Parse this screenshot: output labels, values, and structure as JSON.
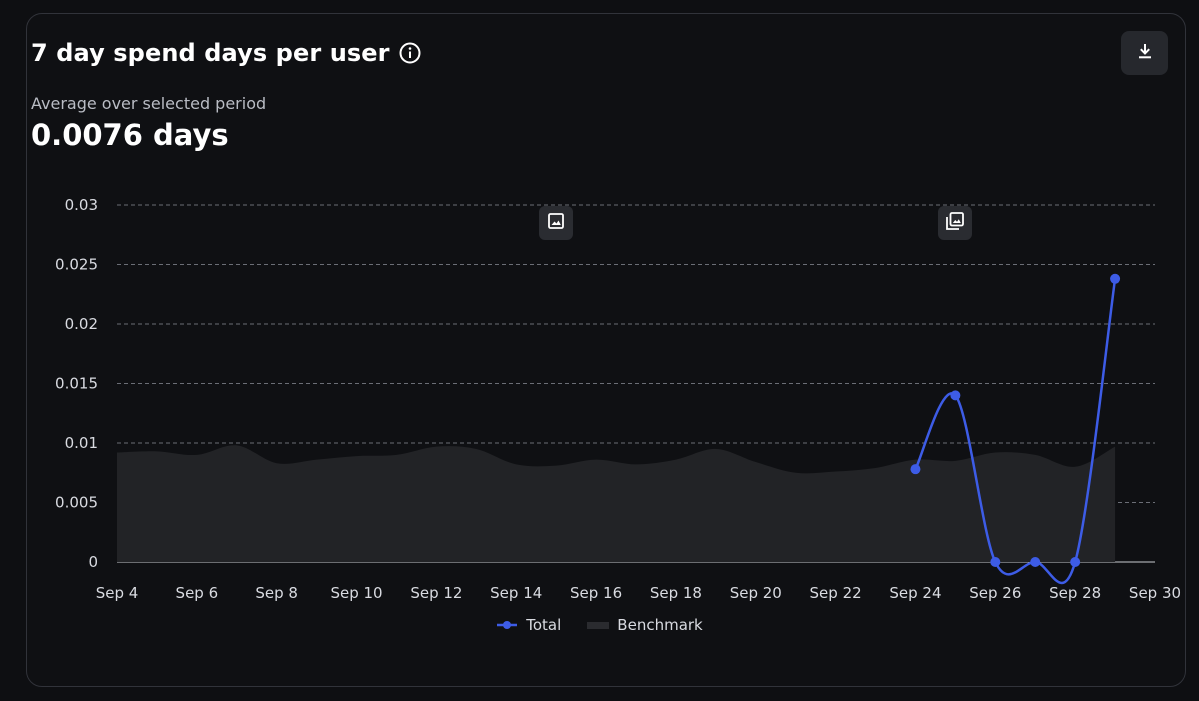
{
  "header": {
    "title": "7 day spend days per user",
    "info_icon": "info-circle-icon",
    "download_icon": "download-icon"
  },
  "summary": {
    "label": "Average over selected period",
    "value": "0.0076 days"
  },
  "annotations": [
    {
      "date": "Sep 15",
      "icon": "image-icon"
    },
    {
      "date": "Sep 25",
      "icon": "image-stack-icon"
    }
  ],
  "colors": {
    "total": "#3d5ce6",
    "benchmark": "#222326",
    "grid": "#6b6e76",
    "background": "#0f1013"
  },
  "chart_data": {
    "type": "line",
    "x_domain": [
      "Sep 4",
      "Sep 30"
    ],
    "x_ticks": [
      "Sep 4",
      "Sep 6",
      "Sep 8",
      "Sep 10",
      "Sep 12",
      "Sep 14",
      "Sep 16",
      "Sep 18",
      "Sep 20",
      "Sep 22",
      "Sep 24",
      "Sep 26",
      "Sep 28",
      "Sep 30"
    ],
    "y_ticks": [
      "0",
      "0.005",
      "0.01",
      "0.015",
      "0.02",
      "0.025",
      "0.03"
    ],
    "ylim": [
      0,
      0.03
    ],
    "grid": true,
    "legend_position": "bottom-center",
    "series": [
      {
        "name": "Total",
        "style": "line-with-points",
        "points": [
          {
            "x": "Sep 24",
            "y": 0.0078
          },
          {
            "x": "Sep 25",
            "y": 0.014
          },
          {
            "x": "Sep 26",
            "y": 0
          },
          {
            "x": "Sep 27",
            "y": 0
          },
          {
            "x": "Sep 28",
            "y": 0
          },
          {
            "x": "Sep 29",
            "y": 0.0238
          }
        ]
      },
      {
        "name": "Benchmark",
        "style": "area",
        "points": [
          {
            "x": "Sep 4",
            "y": 0.0092
          },
          {
            "x": "Sep 5",
            "y": 0.0093
          },
          {
            "x": "Sep 6",
            "y": 0.009
          },
          {
            "x": "Sep 7",
            "y": 0.0098
          },
          {
            "x": "Sep 8",
            "y": 0.0083
          },
          {
            "x": "Sep 9",
            "y": 0.0086
          },
          {
            "x": "Sep 10",
            "y": 0.0089
          },
          {
            "x": "Sep 11",
            "y": 0.009
          },
          {
            "x": "Sep 12",
            "y": 0.0097
          },
          {
            "x": "Sep 13",
            "y": 0.0095
          },
          {
            "x": "Sep 14",
            "y": 0.0082
          },
          {
            "x": "Sep 15",
            "y": 0.0081
          },
          {
            "x": "Sep 16",
            "y": 0.0086
          },
          {
            "x": "Sep 17",
            "y": 0.0082
          },
          {
            "x": "Sep 18",
            "y": 0.0086
          },
          {
            "x": "Sep 19",
            "y": 0.0095
          },
          {
            "x": "Sep 20",
            "y": 0.0084
          },
          {
            "x": "Sep 21",
            "y": 0.0075
          },
          {
            "x": "Sep 22",
            "y": 0.0076
          },
          {
            "x": "Sep 23",
            "y": 0.0079
          },
          {
            "x": "Sep 24",
            "y": 0.0086
          },
          {
            "x": "Sep 25",
            "y": 0.0085
          },
          {
            "x": "Sep 26",
            "y": 0.0092
          },
          {
            "x": "Sep 27",
            "y": 0.009
          },
          {
            "x": "Sep 28",
            "y": 0.008
          },
          {
            "x": "Sep 29",
            "y": 0.0097
          }
        ]
      }
    ]
  }
}
